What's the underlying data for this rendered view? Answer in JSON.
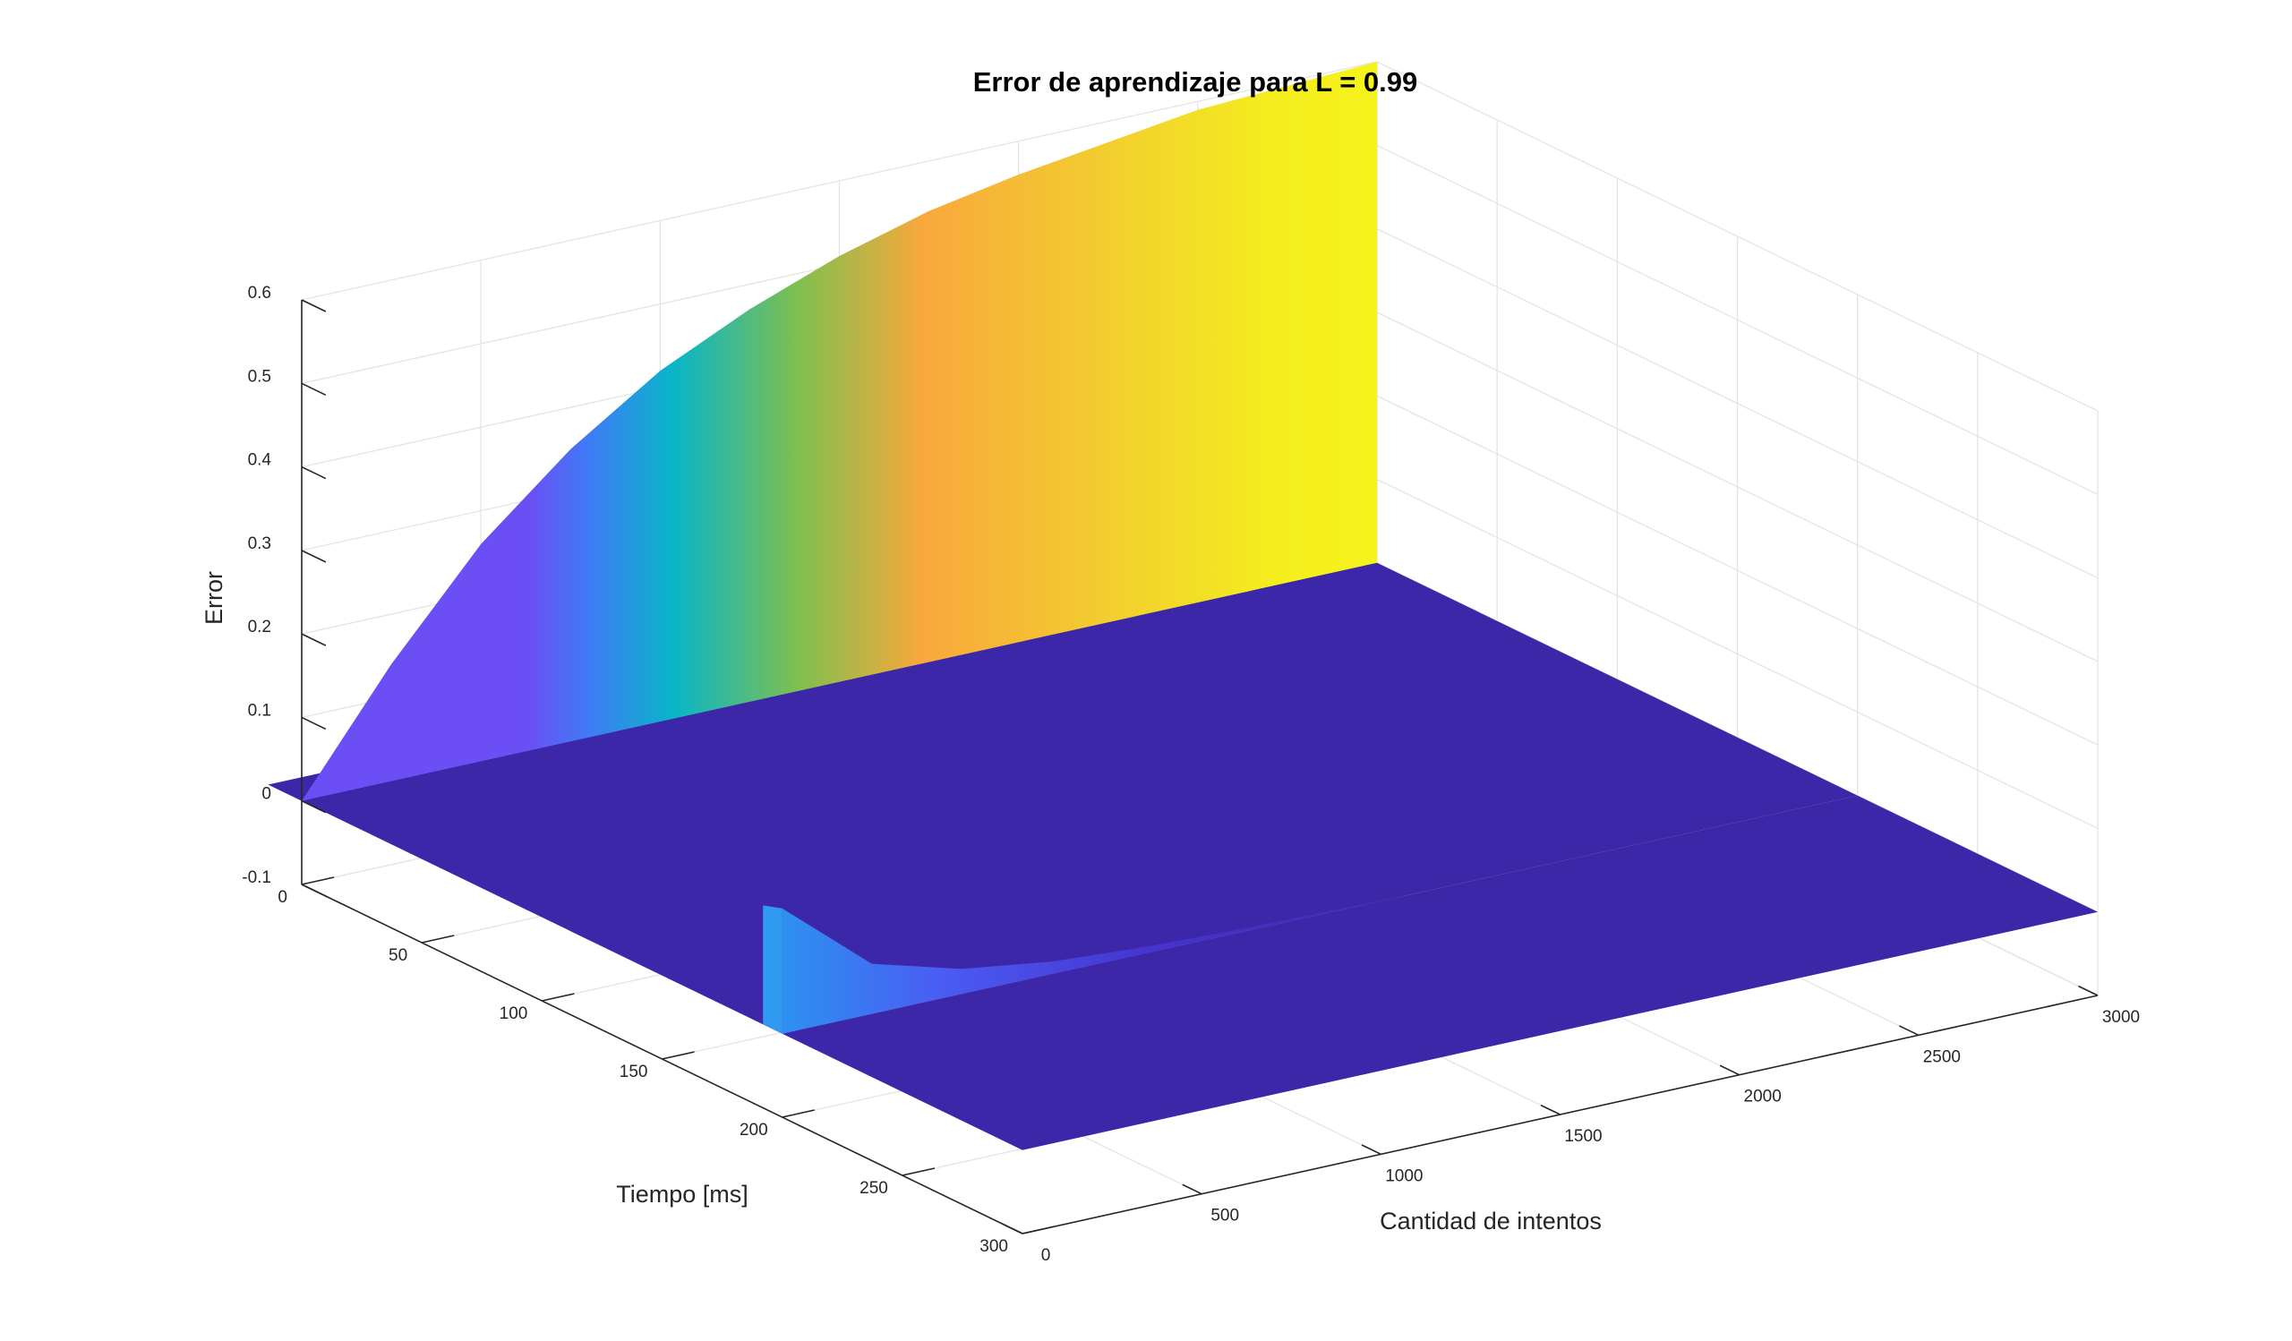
{
  "chart_data": {
    "type": "surface3d",
    "title": "Error de aprendizaje para L = 0.99",
    "xlabel": "Cantidad de intentos",
    "ylabel": "Tiempo [ms]",
    "zlabel": "Error",
    "xlim": [
      0,
      3000
    ],
    "ylim": [
      0,
      300
    ],
    "zlim": [
      -0.1,
      0.6
    ],
    "xticks": [
      "0",
      "500",
      "1000",
      "1500",
      "2000",
      "2500",
      "3000"
    ],
    "yticks": [
      "0",
      "50",
      "100",
      "150",
      "200",
      "250",
      "300"
    ],
    "zticks": [
      "-0.1",
      "0",
      "0.1",
      "0.2",
      "0.3",
      "0.4",
      "0.5",
      "0.6"
    ],
    "grid": true,
    "colormap": "parula",
    "colors": {
      "plane": "#3c27a8",
      "low": "#3e26a8",
      "mid_blue": "#2a8cec",
      "cyan": "#09b5c8",
      "green": "#7fbf4f",
      "orange": "#f9b23a",
      "yellow": "#f9fb14"
    },
    "series": [
      {
        "name": "",
        "description_y_ms": 0,
        "x": [
          0,
          250,
          500,
          750,
          1000,
          1250,
          1500,
          1750,
          2000,
          2500,
          3000
        ],
        "z": [
          0.0,
          0.14,
          0.26,
          0.35,
          0.42,
          0.47,
          0.51,
          0.54,
          0.56,
          0.59,
          0.6
        ]
      },
      {
        "name": "",
        "description_y_ms": 200,
        "x": [
          0,
          250,
          500,
          750,
          1000,
          1250,
          1500,
          1750
        ],
        "z": [
          0.15,
          0.06,
          0.03,
          0.015,
          0.008,
          0.004,
          0.002,
          0.0
        ]
      }
    ]
  }
}
